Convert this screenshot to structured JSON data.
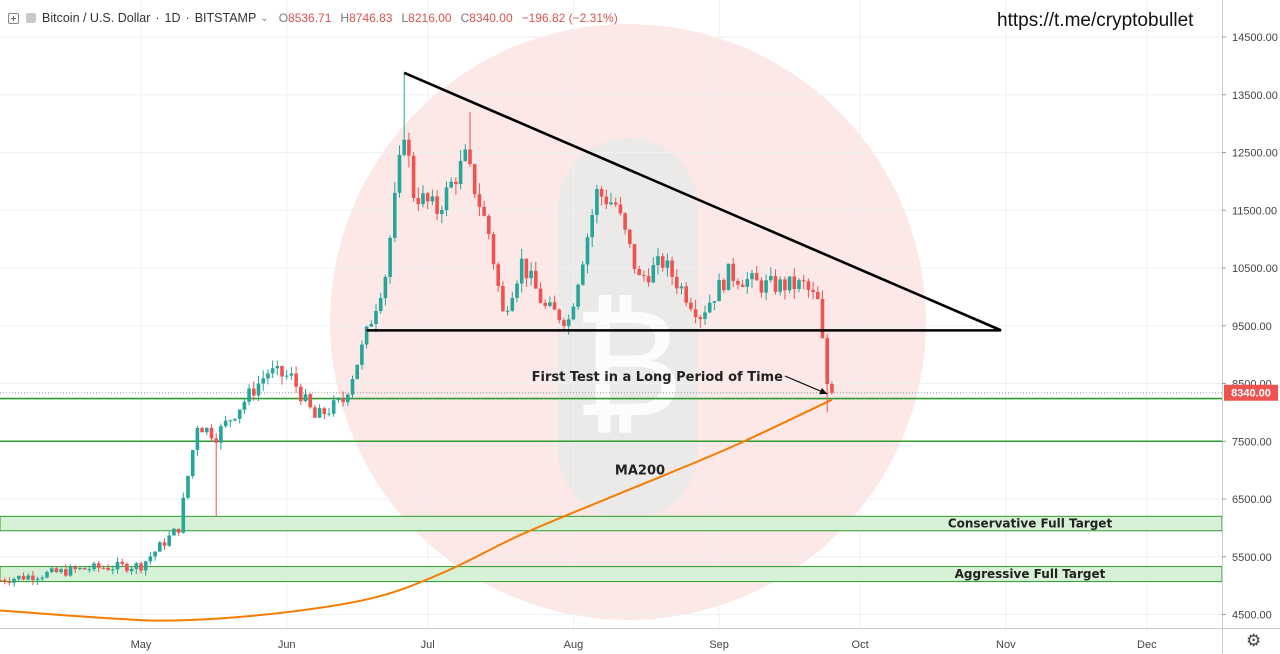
{
  "header": {
    "symbol": "Bitcoin / U.S. Dollar",
    "interval": "1D",
    "exchange": "BITSTAMP",
    "open": "8536.71",
    "high": "8746.83",
    "low": "8216.00",
    "close": "8340.00",
    "change": "−196.82 (−2.31%)"
  },
  "watermark_link": "https://t.me/cryptobullet",
  "price_badge": "8340.00",
  "colors": {
    "up": "#26a69a",
    "down": "#ef5350",
    "ma": "#f57c00",
    "level": "#2e9b2e",
    "zone_fill": "#d6f1d6",
    "badge": "#ef5350"
  },
  "chart_data": {
    "type": "candlestick",
    "x_axis": {
      "labels": [
        "May",
        "Jun",
        "Jul",
        "Aug",
        "Sep",
        "Oct",
        "Nov",
        "Dec"
      ],
      "start": "2019-04-01",
      "end": "2019-12-31"
    },
    "y_axis": {
      "ticks": [
        "14500.00",
        "13500.00",
        "12500.00",
        "11500.00",
        "10500.00",
        "9500.00",
        "8500.00",
        "7500.00",
        "6500.00",
        "5500.00",
        "4500.00"
      ],
      "range": [
        4100,
        14800
      ]
    },
    "price_keypoints": [
      {
        "date": "2019-04-01",
        "price": 5100
      },
      {
        "date": "2019-04-20",
        "price": 5300
      },
      {
        "date": "2019-05-01",
        "price": 5350
      },
      {
        "date": "2019-05-09",
        "price": 6000
      },
      {
        "date": "2019-05-13",
        "price": 7800
      },
      {
        "date": "2019-05-17",
        "price": 7600
      },
      {
        "date": "2019-05-21",
        "price": 8000
      },
      {
        "date": "2019-05-28",
        "price": 8700
      },
      {
        "date": "2019-06-02",
        "price": 8600
      },
      {
        "date": "2019-06-07",
        "price": 7900
      },
      {
        "date": "2019-06-13",
        "price": 8200
      },
      {
        "date": "2019-06-17",
        "price": 9100
      },
      {
        "date": "2019-06-22",
        "price": 10400
      },
      {
        "date": "2019-06-26",
        "price": 12900
      },
      {
        "date": "2019-06-28",
        "price": 11800
      },
      {
        "date": "2019-07-03",
        "price": 11500
      },
      {
        "date": "2019-07-09",
        "price": 12400
      },
      {
        "date": "2019-07-14",
        "price": 11100
      },
      {
        "date": "2019-07-17",
        "price": 9700
      },
      {
        "date": "2019-07-21",
        "price": 10600
      },
      {
        "date": "2019-07-26",
        "price": 9800
      },
      {
        "date": "2019-07-31",
        "price": 9600
      },
      {
        "date": "2019-08-06",
        "price": 11800
      },
      {
        "date": "2019-08-10",
        "price": 11600
      },
      {
        "date": "2019-08-15",
        "price": 10300
      },
      {
        "date": "2019-08-20",
        "price": 10600
      },
      {
        "date": "2019-08-28",
        "price": 9700
      },
      {
        "date": "2019-09-03",
        "price": 10400
      },
      {
        "date": "2019-09-10",
        "price": 10200
      },
      {
        "date": "2019-09-19",
        "price": 10200
      },
      {
        "date": "2019-09-22",
        "price": 9900
      },
      {
        "date": "2019-09-24",
        "price": 8500
      },
      {
        "date": "2019-09-25",
        "price": 8400
      }
    ],
    "wick_extremes": [
      {
        "date": "2019-06-26",
        "high": 13880
      },
      {
        "date": "2019-07-10",
        "high": 13200
      },
      {
        "date": "2019-05-17",
        "low": 6200
      },
      {
        "date": "2019-09-24",
        "low": 8000
      }
    ],
    "ma200": {
      "name": "MA200",
      "points": [
        {
          "date": "2019-04-01",
          "value": 4570
        },
        {
          "date": "2019-04-25",
          "value": 4430
        },
        {
          "date": "2019-05-10",
          "value": 4400
        },
        {
          "date": "2019-06-01",
          "value": 4540
        },
        {
          "date": "2019-06-20",
          "value": 4800
        },
        {
          "date": "2019-07-05",
          "value": 5250
        },
        {
          "date": "2019-07-20",
          "value": 5850
        },
        {
          "date": "2019-08-05",
          "value": 6400
        },
        {
          "date": "2019-08-20",
          "value": 6900
        },
        {
          "date": "2019-09-05",
          "value": 7450
        },
        {
          "date": "2019-09-25",
          "value": 8220
        }
      ]
    },
    "drawings": {
      "descending_trendline": {
        "from": {
          "date": "2019-06-26",
          "price": 13880
        },
        "to": {
          "date": "2019-10-31",
          "price": 9420
        }
      },
      "support_line": {
        "from": {
          "date": "2019-06-18",
          "price": 9420
        },
        "to": {
          "date": "2019-10-31",
          "price": 9420
        }
      },
      "levels": [
        8240,
        7500
      ],
      "zones": [
        {
          "label": "Conservative Full Target",
          "from": 5950,
          "to": 6200
        },
        {
          "label": "Aggressive Full Target",
          "from": 5070,
          "to": 5330
        }
      ],
      "arrow": {
        "from": {
          "date": "2019-09-15",
          "price": 8630
        },
        "to": {
          "date": "2019-09-24",
          "price": 8320
        }
      }
    },
    "annotations": [
      "First Test in a Long Period of Time",
      "MA200",
      "Conservative Full Target",
      "Aggressive Full Target"
    ]
  }
}
